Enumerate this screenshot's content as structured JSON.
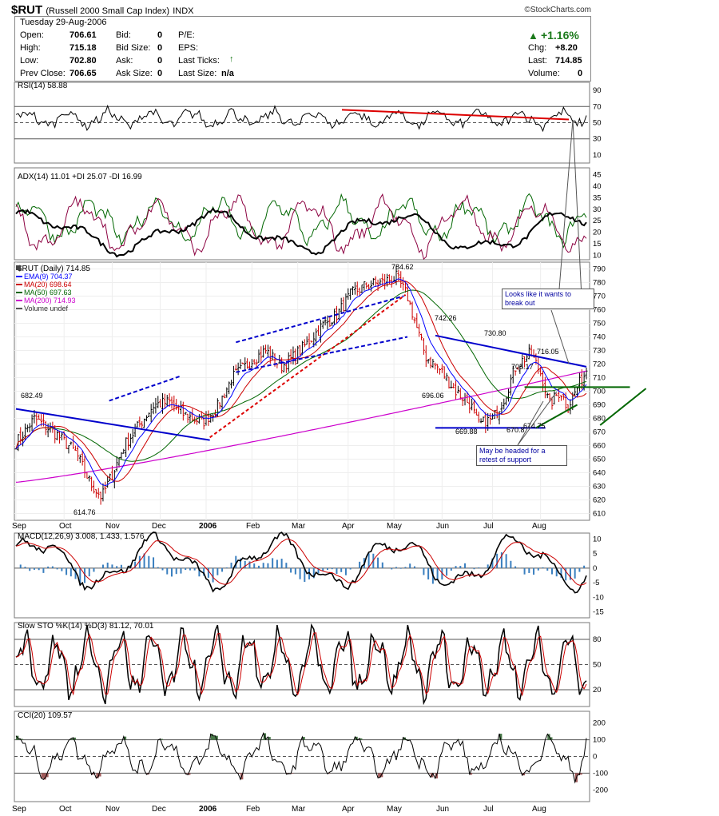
{
  "header": {
    "symbol": "$RUT",
    "name": "(Russell 2000 Small Cap Index)",
    "exchange": "INDX",
    "credit": "©StockCharts.com"
  },
  "quote": {
    "date": "Tuesday  29-Aug-2006",
    "open_label": "Open:",
    "open": "706.61",
    "high_label": "High:",
    "high": "715.18",
    "low_label": "Low:",
    "low": "702.80",
    "prev_label": "Prev Close:",
    "prev": "706.65",
    "bid_label": "Bid:",
    "bid": "0",
    "bidsize_label": "Bid Size:",
    "bidsize": "0",
    "ask_label": "Ask:",
    "ask": "0",
    "asksize_label": "Ask Size:",
    "asksize": "0",
    "pe_label": "P/E:",
    "eps_label": "EPS:",
    "lastticks_label": "Last Ticks:",
    "lastsize_label": "Last Size:",
    "lastsize": "n/a",
    "pct": "+1.16%",
    "chg_label": "Chg:",
    "chg": "+8.20",
    "last_label": "Last:",
    "last": "714.85",
    "volume_label": "Volume:",
    "volume": "0"
  },
  "colors": {
    "price_up": "#000000",
    "ema9": "#0000ff",
    "ma20": "#cc0000",
    "ma50": "#006600",
    "ma200": "#cc00cc",
    "trendline": "#0000cc",
    "rsi_trend": "#dd0000",
    "pos_fill": "#4a7a4a",
    "neg_fill": "#a05a5a",
    "hist": "#3a7fbf"
  },
  "annotations": {
    "note1": [
      "Looks like it wants to",
      "break out"
    ],
    "note2": [
      "May be headed for a",
      "retest of support"
    ]
  },
  "chart_data": [
    {
      "type": "line",
      "title": "RSI(14) 58.88",
      "y_ticks": [
        "90",
        "70",
        "50",
        "30",
        "10"
      ],
      "ylim": [
        0,
        100
      ],
      "reference_lines": [
        70,
        50,
        30
      ],
      "series": [
        {
          "name": "RSI(14)",
          "last": 58.88
        }
      ]
    },
    {
      "type": "line",
      "title": "ADX(14) 11.01 +DI 25.07 -DI 16.99",
      "y_ticks": [
        "45",
        "40",
        "35",
        "30",
        "25",
        "20",
        "15",
        "10"
      ],
      "ylim": [
        8,
        48
      ],
      "series": [
        {
          "name": "ADX(14)",
          "last": 11.01
        },
        {
          "name": "+DI",
          "last": 25.07
        },
        {
          "name": "-DI",
          "last": 16.99
        }
      ]
    },
    {
      "type": "line",
      "title": "$RUT (Daily) 714.85",
      "legend": [
        "EMA(9) 704.37",
        "MA(20) 698.64",
        "MA(50) 697.63",
        "MA(200) 714.93",
        "Volume undef"
      ],
      "y_ticks": [
        "790",
        "780",
        "770",
        "760",
        "750",
        "740",
        "730",
        "720",
        "710",
        "700",
        "690",
        "680",
        "670",
        "660",
        "650",
        "640",
        "630",
        "620",
        "610"
      ],
      "ylim": [
        605,
        795
      ],
      "x_ticks": [
        "Sep",
        "Oct",
        "Nov",
        "Dec",
        "2006",
        "Feb",
        "Mar",
        "Apr",
        "May",
        "Jun",
        "Jul",
        "Aug"
      ],
      "price_labels": [
        "682.49",
        "614.76",
        "784.62",
        "742.26",
        "730.80",
        "716.05",
        "705.17",
        "696.06",
        "669.88",
        "670.8",
        "674.75"
      ],
      "x": [
        0,
        10,
        22,
        32,
        40,
        46,
        52,
        58,
        66,
        74,
        82,
        90,
        100,
        108,
        116,
        126,
        134,
        142,
        148,
        156,
        164,
        172,
        180,
        188,
        196,
        204,
        210,
        216,
        220,
        228,
        236,
        244,
        248,
        256,
        262,
        268,
        276,
        282,
        286,
        292,
        296,
        302,
        306
      ],
      "close": [
        662,
        680,
        668,
        655,
        632,
        622,
        640,
        660,
        675,
        690,
        692,
        683,
        677,
        688,
        710,
        722,
        730,
        718,
        724,
        735,
        748,
        756,
        772,
        778,
        780,
        784,
        770,
        742,
        725,
        715,
        700,
        690,
        675,
        680,
        695,
        718,
        728,
        712,
        690,
        700,
        688,
        705,
        714.85
      ],
      "series": [
        {
          "name": "EMA(9)",
          "last": 704.37
        },
        {
          "name": "MA(20)",
          "last": 698.64
        },
        {
          "name": "MA(50)",
          "last": 697.63
        },
        {
          "name": "MA(200)",
          "last": 714.93
        }
      ]
    },
    {
      "type": "line",
      "title": "MACD(12,26,9) 3.008, 1.433, 1.576",
      "y_ticks": [
        "10",
        "5",
        "0",
        "-5",
        "-10",
        "-15"
      ],
      "ylim": [
        -17,
        12
      ],
      "series": [
        {
          "name": "MACD",
          "last": 3.008
        },
        {
          "name": "Signal",
          "last": 1.433
        },
        {
          "name": "Histogram",
          "last": 1.576
        }
      ]
    },
    {
      "type": "line",
      "title": "Slow STO %K(14) %D(3) 81.12, 70.01",
      "y_ticks": [
        "80",
        "50",
        "20"
      ],
      "ylim": [
        0,
        100
      ],
      "reference_lines": [
        80,
        50,
        20
      ],
      "series": [
        {
          "name": "%K(14)",
          "last": 81.12
        },
        {
          "name": "%D(3)",
          "last": 70.01
        }
      ]
    },
    {
      "type": "line",
      "title": "CCI(20) 109.57",
      "y_ticks": [
        "200",
        "100",
        "0",
        "-100",
        "-200"
      ],
      "ylim": [
        -270,
        270
      ],
      "reference_lines": [
        100,
        0,
        -100
      ],
      "series": [
        {
          "name": "CCI(20)",
          "last": 109.57
        }
      ]
    }
  ]
}
